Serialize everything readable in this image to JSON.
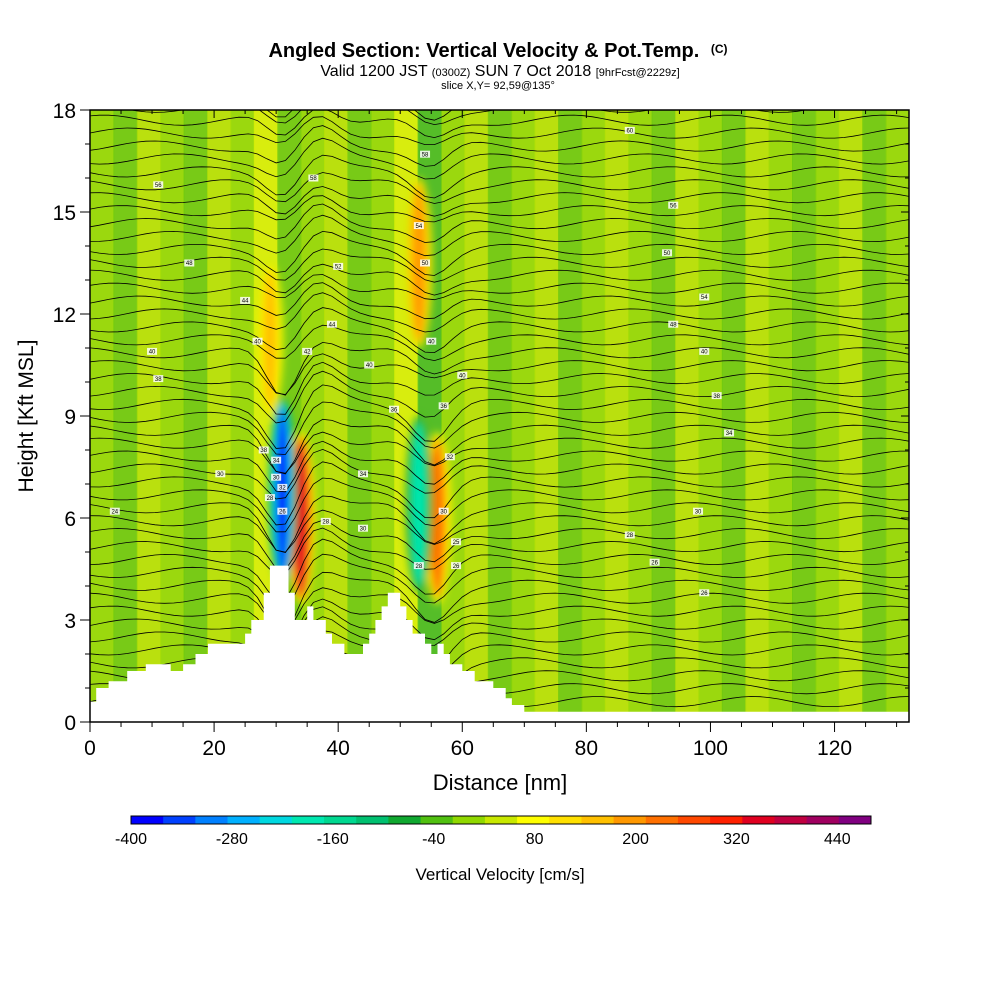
{
  "header": {
    "title": "Angled Section: Vertical Velocity & Pot.Temp.",
    "title_mark": "(C)",
    "valid_prefix": "Valid 1200 JST",
    "valid_utc": "(0300Z)",
    "valid_date": "SUN 7 Oct 2018",
    "valid_fcst": "[9hrFcst@2229z]",
    "slice": "slice X,Y= 92,59@135°"
  },
  "chart_data": {
    "type": "heatmap",
    "xlabel": "Distance [nm]",
    "ylabel": "Height [Kft MSL]",
    "xlim": [
      0,
      132
    ],
    "ylim": [
      0,
      18
    ],
    "x_ticks": [
      0,
      20,
      40,
      60,
      80,
      100,
      120
    ],
    "y_ticks": [
      0,
      3,
      6,
      9,
      12,
      15,
      18
    ],
    "colorbar": {
      "label": "Vertical Velocity [cm/s]",
      "min": -400,
      "max": 480,
      "step": 40,
      "tick_labels": [
        "-400",
        "-280",
        "-160",
        "-40",
        "80",
        "200",
        "320",
        "440"
      ],
      "tick_values": [
        -400,
        -280,
        -160,
        -40,
        80,
        200,
        320,
        440
      ],
      "colors": [
        "#0000ff",
        "#0040ff",
        "#0080ff",
        "#00b0ff",
        "#00d8e0",
        "#00e8b0",
        "#00d890",
        "#00c070",
        "#10a830",
        "#50c010",
        "#90d800",
        "#c8e800",
        "#ffff00",
        "#ffe000",
        "#ffc000",
        "#ff9800",
        "#ff7000",
        "#ff4800",
        "#ff2000",
        "#e00020",
        "#c00040",
        "#a00060",
        "#800080"
      ]
    },
    "terrain_profile": {
      "x": [
        0,
        1,
        1,
        3,
        3,
        6,
        6,
        9,
        9,
        13,
        13,
        15,
        15,
        17,
        17,
        19,
        19,
        22,
        22,
        25,
        25,
        26,
        26,
        28,
        28,
        29,
        29,
        32,
        32,
        33,
        33,
        35,
        35,
        36,
        36,
        38,
        38,
        39,
        39,
        41,
        41,
        42,
        42,
        44,
        44,
        45,
        45,
        46,
        46,
        47,
        47,
        48,
        48,
        50,
        50,
        51,
        51,
        52,
        52,
        54,
        54,
        55,
        55,
        56,
        56,
        57,
        57,
        58,
        58,
        60,
        60,
        62,
        62,
        65,
        65,
        67,
        67,
        68,
        68,
        70,
        70,
        72,
        72,
        132
      ],
      "height": [
        0.6,
        0.6,
        1.0,
        1.0,
        1.2,
        1.2,
        1.5,
        1.5,
        1.7,
        1.7,
        1.5,
        1.5,
        1.7,
        1.7,
        2.0,
        2.0,
        2.3,
        2.3,
        2.3,
        2.3,
        2.6,
        2.6,
        3.0,
        3.0,
        3.8,
        3.8,
        4.6,
        4.6,
        3.8,
        3.8,
        3.0,
        3.0,
        3.4,
        3.4,
        3.0,
        3.0,
        2.6,
        2.6,
        2.3,
        2.3,
        2.0,
        2.0,
        2.0,
        2.0,
        2.3,
        2.3,
        2.6,
        2.6,
        3.0,
        3.0,
        3.4,
        3.4,
        3.8,
        3.8,
        3.4,
        3.4,
        3.0,
        3.0,
        2.6,
        2.6,
        2.3,
        2.3,
        2.0,
        2.0,
        2.3,
        2.3,
        2.0,
        2.0,
        1.7,
        1.7,
        1.5,
        1.5,
        1.2,
        1.2,
        1.0,
        1.0,
        0.7,
        0.7,
        0.5,
        0.5,
        0.3,
        0.3,
        0.3,
        0.3
      ]
    },
    "field_features": [
      {
        "kind": "updraft",
        "x": 34,
        "z_bottom": 3.5,
        "z_top": 8.5,
        "peak_cm_s": 360
      },
      {
        "kind": "downdraft",
        "x": 31,
        "z_bottom": 4.0,
        "z_top": 9.5,
        "peak_cm_s": -400
      },
      {
        "kind": "updraft",
        "x": 29,
        "z_bottom": 9.0,
        "z_top": 13.5,
        "peak_cm_s": 160
      },
      {
        "kind": "updraft",
        "x": 56,
        "z_bottom": 3.5,
        "z_top": 8.5,
        "peak_cm_s": 240
      },
      {
        "kind": "downdraft",
        "x": 53,
        "z_bottom": 3.8,
        "z_top": 9.0,
        "peak_cm_s": -200
      },
      {
        "kind": "updraft",
        "x": 53,
        "z_bottom": 11.0,
        "z_top": 16.0,
        "peak_cm_s": 200
      }
    ],
    "contour_labels": [
      {
        "x": 87,
        "z": 17.4,
        "text": "60"
      },
      {
        "x": 36,
        "z": 16.0,
        "text": "58"
      },
      {
        "x": 54,
        "z": 16.7,
        "text": "58"
      },
      {
        "x": 11,
        "z": 15.8,
        "text": "56"
      },
      {
        "x": 94,
        "z": 15.2,
        "text": "56"
      },
      {
        "x": 53,
        "z": 14.6,
        "text": "54"
      },
      {
        "x": 16,
        "z": 13.5,
        "text": "48"
      },
      {
        "x": 40,
        "z": 13.4,
        "text": "52"
      },
      {
        "x": 54,
        "z": 13.5,
        "text": "50"
      },
      {
        "x": 93,
        "z": 13.8,
        "text": "50"
      },
      {
        "x": 25,
        "z": 12.4,
        "text": "44"
      },
      {
        "x": 99,
        "z": 12.5,
        "text": "54"
      },
      {
        "x": 39,
        "z": 11.7,
        "text": "44"
      },
      {
        "x": 94,
        "z": 11.7,
        "text": "48"
      },
      {
        "x": 27,
        "z": 11.2,
        "text": "40"
      },
      {
        "x": 10,
        "z": 10.9,
        "text": "40"
      },
      {
        "x": 35,
        "z": 10.9,
        "text": "42"
      },
      {
        "x": 55,
        "z": 11.2,
        "text": "40"
      },
      {
        "x": 99,
        "z": 10.9,
        "text": "40"
      },
      {
        "x": 45,
        "z": 10.5,
        "text": "40"
      },
      {
        "x": 11,
        "z": 10.1,
        "text": "38"
      },
      {
        "x": 60,
        "z": 10.2,
        "text": "40"
      },
      {
        "x": 101,
        "z": 9.6,
        "text": "38"
      },
      {
        "x": 49,
        "z": 9.2,
        "text": "36"
      },
      {
        "x": 57,
        "z": 9.3,
        "text": "36"
      },
      {
        "x": 103,
        "z": 8.5,
        "text": "34"
      },
      {
        "x": 28,
        "z": 8.0,
        "text": "38"
      },
      {
        "x": 30,
        "z": 7.7,
        "text": "34"
      },
      {
        "x": 58,
        "z": 7.8,
        "text": "32"
      },
      {
        "x": 21,
        "z": 7.3,
        "text": "30"
      },
      {
        "x": 44,
        "z": 7.3,
        "text": "34"
      },
      {
        "x": 30,
        "z": 7.2,
        "text": "30"
      },
      {
        "x": 31,
        "z": 6.9,
        "text": "32"
      },
      {
        "x": 29,
        "z": 6.6,
        "text": "28"
      },
      {
        "x": 31,
        "z": 6.2,
        "text": "26"
      },
      {
        "x": 4,
        "z": 6.2,
        "text": "24"
      },
      {
        "x": 57,
        "z": 6.2,
        "text": "30"
      },
      {
        "x": 98,
        "z": 6.2,
        "text": "30"
      },
      {
        "x": 38,
        "z": 5.9,
        "text": "28"
      },
      {
        "x": 44,
        "z": 5.7,
        "text": "30"
      },
      {
        "x": 87,
        "z": 5.5,
        "text": "28"
      },
      {
        "x": 59,
        "z": 5.3,
        "text": "25"
      },
      {
        "x": 53,
        "z": 4.6,
        "text": "28"
      },
      {
        "x": 59,
        "z": 4.6,
        "text": "26"
      },
      {
        "x": 91,
        "z": 4.7,
        "text": "26"
      },
      {
        "x": 99,
        "z": 3.8,
        "text": "26"
      }
    ]
  }
}
